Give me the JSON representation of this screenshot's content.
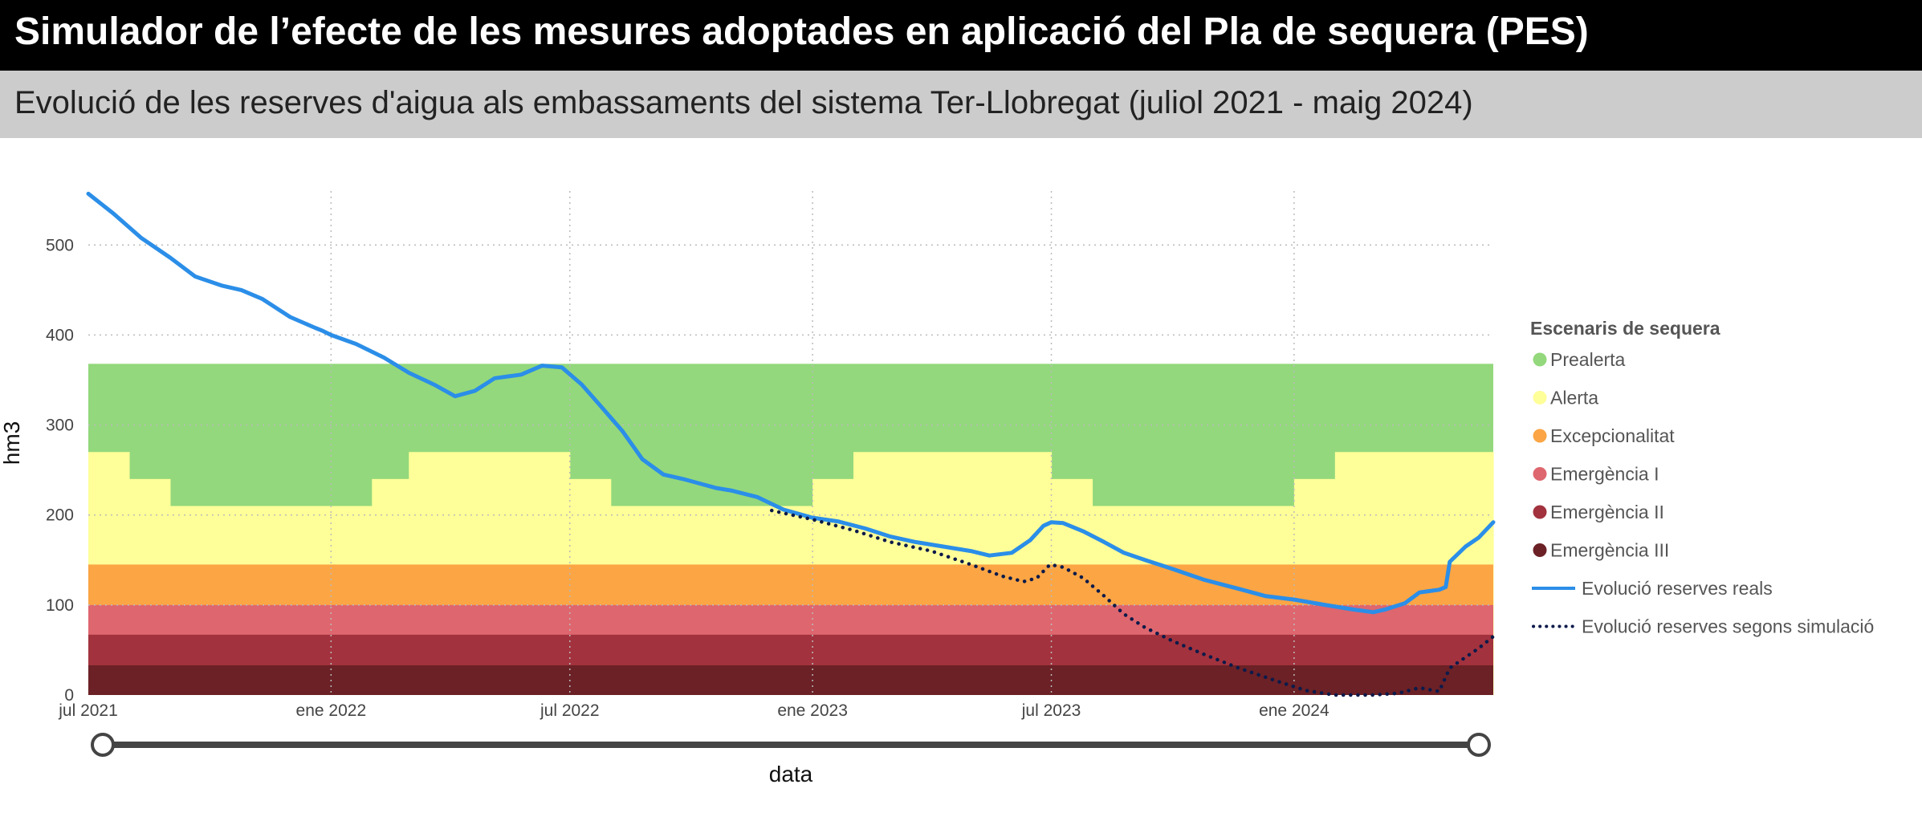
{
  "header": {
    "title": "Simulador de l’efecte de les mesures adoptades en aplicació del Pla de sequera (PES)",
    "subtitle": "Evolució de les reserves d'aigua als embassaments del sistema Ter-Llobregat (juliol 2021 - maig 2024)"
  },
  "slider": {
    "start_fraction": 0.0,
    "end_fraction": 1.0
  },
  "chart_data": {
    "type": "line",
    "xlabel": "data",
    "ylabel": "hm3",
    "xlim": [
      "2021-07-01",
      "2024-05-31"
    ],
    "ylim": [
      0,
      560
    ],
    "grid": true,
    "x_ticks": [
      {
        "date": "2021-07-01",
        "label": "jul 2021"
      },
      {
        "date": "2022-01-01",
        "label": "ene 2022"
      },
      {
        "date": "2022-07-01",
        "label": "jul 2022"
      },
      {
        "date": "2023-01-01",
        "label": "ene 2023"
      },
      {
        "date": "2023-07-01",
        "label": "jul 2023"
      },
      {
        "date": "2024-01-01",
        "label": "ene 2024"
      }
    ],
    "y_ticks": [
      0,
      100,
      200,
      300,
      400,
      500
    ],
    "legend": {
      "title": "Escenaris de sequera",
      "position": "right",
      "items": [
        {
          "label": "Prealerta",
          "color": "#93d87c",
          "kind": "dot"
        },
        {
          "label": "Alerta",
          "color": "#ffff99",
          "kind": "dot"
        },
        {
          "label": "Excepcionalitat",
          "color": "#fba544",
          "kind": "dot"
        },
        {
          "label": "Emergència I",
          "color": "#de666e",
          "kind": "dot"
        },
        {
          "label": "Emergència II",
          "color": "#a2323d",
          "kind": "dot"
        },
        {
          "label": "Emergència III",
          "color": "#6b2126",
          "kind": "dot"
        },
        {
          "label": "Evolució reserves reals",
          "color": "#2b8ee8",
          "kind": "line"
        },
        {
          "label": "Evolució reserves segons simulació",
          "color": "#0c1a4a",
          "kind": "dotted"
        }
      ]
    },
    "bands": {
      "prealerta_top": 368,
      "excepcionalitat_top": 145,
      "emergencia1_top": 100,
      "emergencia2_top": 67,
      "emergencia3_top": 33,
      "alerta_top_by_month": [
        {
          "from": "2021-07-01",
          "to": "2021-08-01",
          "value": 270
        },
        {
          "from": "2021-08-01",
          "to": "2021-09-01",
          "value": 240
        },
        {
          "from": "2021-09-01",
          "to": "2022-02-01",
          "value": 210
        },
        {
          "from": "2022-02-01",
          "to": "2022-03-01",
          "value": 240
        },
        {
          "from": "2022-03-01",
          "to": "2022-07-01",
          "value": 270
        },
        {
          "from": "2022-07-01",
          "to": "2022-08-01",
          "value": 240
        },
        {
          "from": "2022-08-01",
          "to": "2023-01-01",
          "value": 210
        },
        {
          "from": "2023-01-01",
          "to": "2023-02-01",
          "value": 240
        },
        {
          "from": "2023-02-01",
          "to": "2023-07-01",
          "value": 270
        },
        {
          "from": "2023-07-01",
          "to": "2023-08-01",
          "value": 240
        },
        {
          "from": "2023-08-01",
          "to": "2024-01-01",
          "value": 210
        },
        {
          "from": "2024-01-01",
          "to": "2024-02-01",
          "value": 240
        },
        {
          "from": "2024-02-01",
          "to": "2024-05-31",
          "value": 270
        }
      ]
    },
    "series": [
      {
        "name": "Evolució reserves reals",
        "color": "#2b8ee8",
        "style": "solid",
        "points": [
          [
            "2021-07-01",
            557
          ],
          [
            "2021-07-20",
            535
          ],
          [
            "2021-08-10",
            508
          ],
          [
            "2021-09-01",
            486
          ],
          [
            "2021-09-20",
            465
          ],
          [
            "2021-10-10",
            455
          ],
          [
            "2021-10-25",
            450
          ],
          [
            "2021-11-10",
            440
          ],
          [
            "2021-12-01",
            420
          ],
          [
            "2021-12-20",
            408
          ],
          [
            "2021-12-25",
            405
          ],
          [
            "2022-01-01",
            400
          ],
          [
            "2022-01-20",
            390
          ],
          [
            "2022-02-10",
            375
          ],
          [
            "2022-03-01",
            358
          ],
          [
            "2022-03-20",
            345
          ],
          [
            "2022-04-05",
            332
          ],
          [
            "2022-04-20",
            338
          ],
          [
            "2022-05-05",
            352
          ],
          [
            "2022-05-25",
            356
          ],
          [
            "2022-06-10",
            366
          ],
          [
            "2022-06-25",
            364
          ],
          [
            "2022-07-10",
            345
          ],
          [
            "2022-07-25",
            320
          ],
          [
            "2022-08-10",
            293
          ],
          [
            "2022-08-25",
            262
          ],
          [
            "2022-09-10",
            245
          ],
          [
            "2022-09-25",
            240
          ],
          [
            "2022-10-10",
            234
          ],
          [
            "2022-10-20",
            230
          ],
          [
            "2022-11-01",
            227
          ],
          [
            "2022-11-20",
            220
          ],
          [
            "2022-12-10",
            206
          ],
          [
            "2023-01-01",
            197
          ],
          [
            "2023-01-20",
            193
          ],
          [
            "2023-02-10",
            185
          ],
          [
            "2023-03-01",
            176
          ],
          [
            "2023-03-20",
            170
          ],
          [
            "2023-04-10",
            165
          ],
          [
            "2023-05-01",
            160
          ],
          [
            "2023-05-15",
            155
          ],
          [
            "2023-06-01",
            158
          ],
          [
            "2023-06-15",
            172
          ],
          [
            "2023-06-25",
            188
          ],
          [
            "2023-07-01",
            192
          ],
          [
            "2023-07-10",
            191
          ],
          [
            "2023-07-25",
            182
          ],
          [
            "2023-08-10",
            170
          ],
          [
            "2023-08-25",
            158
          ],
          [
            "2023-09-10",
            150
          ],
          [
            "2023-10-01",
            140
          ],
          [
            "2023-10-25",
            128
          ],
          [
            "2023-11-20",
            118
          ],
          [
            "2023-12-10",
            110
          ],
          [
            "2024-01-01",
            106
          ],
          [
            "2024-01-25",
            100
          ],
          [
            "2024-02-15",
            95
          ],
          [
            "2024-03-01",
            92
          ],
          [
            "2024-03-10",
            95
          ],
          [
            "2024-03-25",
            102
          ],
          [
            "2024-04-05",
            114
          ],
          [
            "2024-04-20",
            117
          ],
          [
            "2024-04-25",
            120
          ],
          [
            "2024-04-28",
            148
          ],
          [
            "2024-05-10",
            165
          ],
          [
            "2024-05-20",
            175
          ],
          [
            "2024-05-31",
            192
          ]
        ]
      },
      {
        "name": "Evolució reserves segons simulació",
        "color": "#0c1a4a",
        "style": "dotted",
        "points": [
          [
            "2022-12-01",
            205
          ],
          [
            "2023-01-01",
            195
          ],
          [
            "2023-02-01",
            183
          ],
          [
            "2023-03-01",
            170
          ],
          [
            "2023-04-01",
            160
          ],
          [
            "2023-05-01",
            145
          ],
          [
            "2023-05-25",
            132
          ],
          [
            "2023-06-10",
            126
          ],
          [
            "2023-06-20",
            130
          ],
          [
            "2023-06-30",
            145
          ],
          [
            "2023-07-10",
            142
          ],
          [
            "2023-07-25",
            130
          ],
          [
            "2023-08-10",
            110
          ],
          [
            "2023-08-25",
            90
          ],
          [
            "2023-09-10",
            75
          ],
          [
            "2023-10-01",
            60
          ],
          [
            "2023-10-25",
            45
          ],
          [
            "2023-11-20",
            30
          ],
          [
            "2023-12-20",
            15
          ],
          [
            "2024-01-10",
            5
          ],
          [
            "2024-02-01",
            0
          ],
          [
            "2024-03-01",
            0
          ],
          [
            "2024-03-20",
            2
          ],
          [
            "2024-04-05",
            8
          ],
          [
            "2024-04-20",
            4
          ],
          [
            "2024-04-28",
            30
          ],
          [
            "2024-05-10",
            42
          ],
          [
            "2024-05-20",
            52
          ],
          [
            "2024-05-31",
            65
          ]
        ]
      }
    ]
  }
}
